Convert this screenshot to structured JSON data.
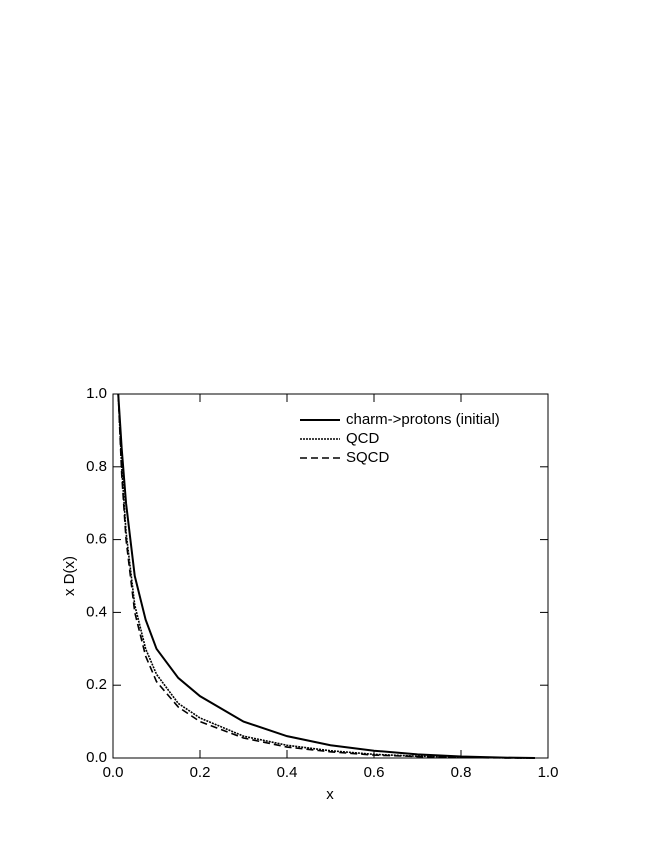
{
  "chart_data": {
    "type": "line",
    "xlabel": "x",
    "ylabel": "x D(x)",
    "x": [
      0.012,
      0.02,
      0.03,
      0.05,
      0.075,
      0.1,
      0.15,
      0.2,
      0.3,
      0.4,
      0.5,
      0.6,
      0.7,
      0.8,
      0.9,
      0.97
    ],
    "series": [
      {
        "name": "charm->protons (initial)",
        "color": "#000000",
        "style": "solid",
        "values": [
          1.0,
          0.85,
          0.7,
          0.5,
          0.38,
          0.3,
          0.22,
          0.17,
          0.1,
          0.06,
          0.035,
          0.02,
          0.01,
          0.004,
          0.001,
          0
        ]
      },
      {
        "name": "QCD",
        "color": "#000000",
        "style": "dotted",
        "values": [
          1.0,
          0.8,
          0.62,
          0.42,
          0.3,
          0.23,
          0.15,
          0.11,
          0.06,
          0.035,
          0.02,
          0.01,
          0.005,
          0.002,
          0.0005,
          0
        ]
      },
      {
        "name": "SQCD",
        "color": "#000000",
        "style": "dashed",
        "values": [
          1.0,
          0.78,
          0.6,
          0.4,
          0.28,
          0.21,
          0.14,
          0.1,
          0.055,
          0.03,
          0.017,
          0.008,
          0.004,
          0.001,
          0.0003,
          0
        ]
      }
    ],
    "xlim": [
      0,
      1
    ],
    "ylim": [
      0,
      1
    ],
    "xticks": [
      {
        "value": 0,
        "label": "0.0"
      },
      {
        "value": 0.2,
        "label": "0.2"
      },
      {
        "value": 0.4,
        "label": "0.4"
      },
      {
        "value": 0.6,
        "label": "0.6"
      },
      {
        "value": 0.8,
        "label": "0.8"
      },
      {
        "value": 1,
        "label": "1.0"
      }
    ],
    "yticks": [
      {
        "value": 0,
        "label": "0.0"
      },
      {
        "value": 0.2,
        "label": "0.2"
      },
      {
        "value": 0.4,
        "label": "0.4"
      },
      {
        "value": 0.6,
        "label": "0.6"
      },
      {
        "value": 0.8,
        "label": "0.8"
      },
      {
        "value": 1,
        "label": "1.0"
      }
    ],
    "legend": "upper right",
    "grid": false
  }
}
